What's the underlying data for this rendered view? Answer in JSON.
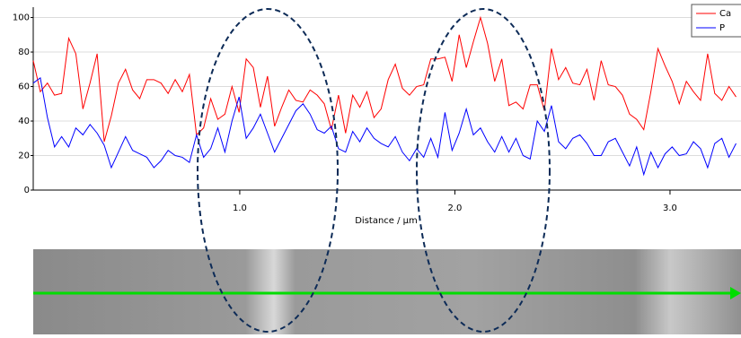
{
  "chart_data": {
    "type": "line",
    "x_label": "Distance / µm",
    "x": [
      0.04,
      0.073,
      0.106,
      0.139,
      0.172,
      0.205,
      0.238,
      0.271,
      0.304,
      0.337,
      0.37,
      0.403,
      0.436,
      0.469,
      0.502,
      0.535,
      0.568,
      0.601,
      0.634,
      0.667,
      0.7,
      0.733,
      0.766,
      0.799,
      0.832,
      0.865,
      0.898,
      0.931,
      0.964,
      0.997,
      1.03,
      1.063,
      1.096,
      1.129,
      1.162,
      1.195,
      1.228,
      1.261,
      1.294,
      1.327,
      1.36,
      1.393,
      1.426,
      1.459,
      1.492,
      1.525,
      1.558,
      1.591,
      1.624,
      1.657,
      1.69,
      1.723,
      1.756,
      1.789,
      1.822,
      1.855,
      1.888,
      1.921,
      1.954,
      1.987,
      2.02,
      2.053,
      2.086,
      2.119,
      2.152,
      2.185,
      2.218,
      2.251,
      2.284,
      2.317,
      2.35,
      2.383,
      2.416,
      2.449,
      2.482,
      2.515,
      2.548,
      2.581,
      2.614,
      2.647,
      2.68,
      2.713,
      2.746,
      2.779,
      2.812,
      2.845,
      2.878,
      2.911,
      2.944,
      2.977,
      3.01,
      3.043,
      3.076,
      3.109,
      3.142,
      3.175,
      3.208,
      3.241,
      3.274,
      3.307
    ],
    "series": [
      {
        "name": "Ca",
        "color": "#ff0000",
        "values": [
          75,
          57,
          62,
          55,
          56,
          88,
          79,
          47,
          62,
          79,
          28,
          43,
          62,
          70,
          58,
          53,
          64,
          64,
          62,
          56,
          64,
          57,
          67,
          32,
          36,
          53,
          41,
          44,
          60,
          45,
          76,
          71,
          48,
          66,
          37,
          48,
          58,
          52,
          51,
          58,
          55,
          50,
          35,
          55,
          33,
          55,
          48,
          57,
          42,
          47,
          64,
          73,
          59,
          55,
          60,
          61,
          76,
          76,
          77,
          63,
          90,
          71,
          86,
          100,
          85,
          63,
          76,
          49,
          51,
          47,
          61,
          61,
          46,
          82,
          64,
          71,
          62,
          61,
          70,
          52,
          75,
          61,
          60,
          55,
          44,
          41,
          35,
          57,
          82,
          72,
          63,
          50,
          63,
          57,
          52,
          79,
          56,
          52,
          60,
          54
        ]
      },
      {
        "name": "P",
        "color": "#0000ff",
        "values": [
          62,
          65,
          42,
          25,
          31,
          25,
          36,
          32,
          38,
          33,
          26,
          13,
          22,
          31,
          23,
          21,
          19,
          13,
          17,
          23,
          20,
          19,
          16,
          32,
          19,
          24,
          36,
          22,
          40,
          54,
          30,
          36,
          44,
          33,
          22,
          30,
          38,
          46,
          50,
          44,
          35,
          33,
          37,
          24,
          22,
          34,
          28,
          36,
          30,
          27,
          25,
          31,
          22,
          17,
          24,
          19,
          30,
          19,
          45,
          23,
          33,
          47,
          32,
          36,
          28,
          22,
          31,
          22,
          30,
          20,
          18,
          40,
          34,
          49,
          28,
          24,
          30,
          32,
          27,
          20,
          20,
          28,
          30,
          22,
          14,
          25,
          9,
          22,
          13,
          21,
          25,
          20,
          21,
          28,
          24,
          13,
          27,
          30,
          19,
          27
        ]
      }
    ],
    "xlim": [
      0.04,
      3.33
    ],
    "xticks": [
      {
        "value": 1,
        "label": "1.0"
      },
      {
        "value": 2,
        "label": "2.0"
      },
      {
        "value": 3,
        "label": "3.0"
      }
    ],
    "ylim": [
      0,
      106
    ],
    "yticks": [
      0,
      20,
      40,
      60,
      80,
      100
    ],
    "grid": true,
    "legend": "upper right"
  }
}
